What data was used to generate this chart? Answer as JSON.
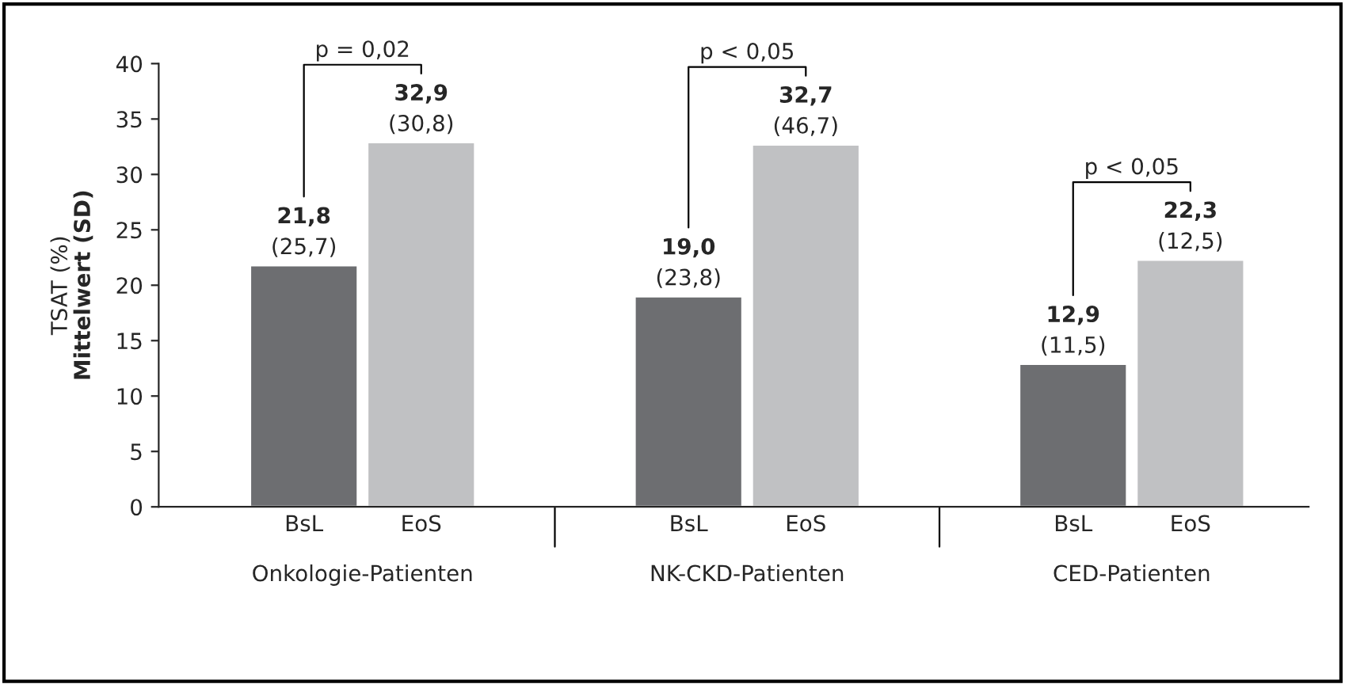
{
  "chart_data": {
    "type": "bar",
    "ylabel": "TSAT (%)\nMittelwert (SD)",
    "categories": [
      "Onkologie-Patienten",
      "NK-CKD-Patienten",
      "CED-Patienten"
    ],
    "series": [
      {
        "name": "BsL",
        "color": "#6d6e71",
        "values": [
          21.8,
          19.0,
          12.9
        ],
        "value_labels": [
          "21,8\n(25,7)",
          "19,0\n(23,8)",
          "12,9\n(11,5)"
        ]
      },
      {
        "name": "EoS",
        "color": "#c0c1c3",
        "values": [
          32.9,
          32.7,
          22.3
        ],
        "value_labels": [
          "32,9\n(30,8)",
          "32,7\n(46,7)",
          "22,3\n(12,5)"
        ]
      }
    ],
    "annotations": [
      "p = 0,02",
      "p < 0,05",
      "p < 0,05"
    ],
    "ylim": [
      0,
      40
    ],
    "yticks": [
      0,
      5,
      10,
      15,
      20,
      25,
      30,
      35,
      40
    ],
    "grid": false,
    "legend": false
  }
}
